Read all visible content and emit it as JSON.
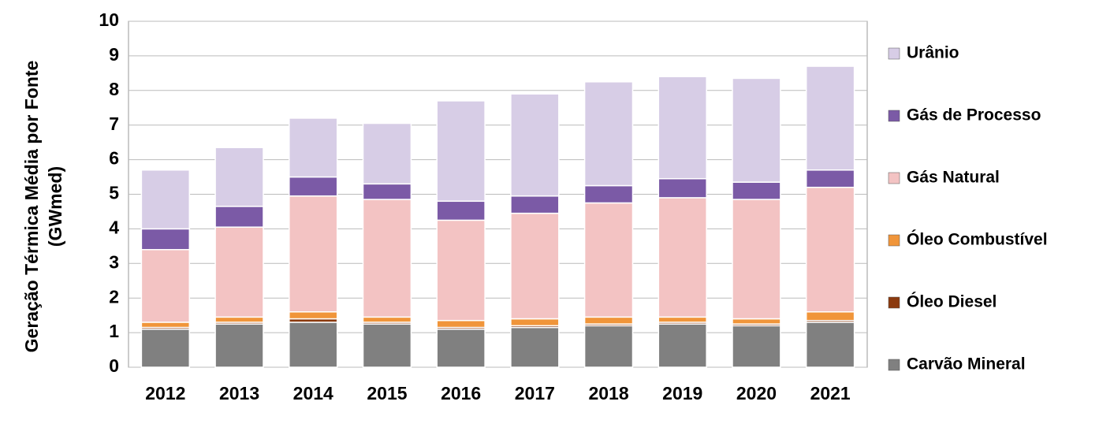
{
  "chart_data": {
    "type": "stacked-bar",
    "y_label": [
      "Geração Térmica Média por Fonte",
      "(GWmed)"
    ],
    "categories": [
      "2012",
      "2013",
      "2014",
      "2015",
      "2016",
      "2017",
      "2018",
      "2019",
      "2020",
      "2021"
    ],
    "series": [
      {
        "name": "Carvão Mineral",
        "color": "#808080",
        "values": [
          1.1,
          1.25,
          1.3,
          1.25,
          1.1,
          1.15,
          1.2,
          1.25,
          1.2,
          1.3
        ]
      },
      {
        "name": "Óleo Diesel",
        "color": "#8b3a0f",
        "values": [
          0.05,
          0.05,
          0.1,
          0.05,
          0.05,
          0.05,
          0.05,
          0.05,
          0.05,
          0.05
        ]
      },
      {
        "name": "Óleo Combustível",
        "color": "#f0953a",
        "values": [
          0.15,
          0.15,
          0.2,
          0.15,
          0.2,
          0.2,
          0.2,
          0.15,
          0.15,
          0.25
        ]
      },
      {
        "name": "Gás Natural",
        "color": "#f3c3c3",
        "values": [
          2.1,
          2.6,
          3.35,
          3.4,
          2.9,
          3.05,
          3.3,
          3.45,
          3.45,
          3.6
        ]
      },
      {
        "name": "Gás de Processo",
        "color": "#7b5aa6",
        "values": [
          0.6,
          0.6,
          0.55,
          0.45,
          0.55,
          0.5,
          0.5,
          0.55,
          0.5,
          0.5
        ]
      },
      {
        "name": "Urânio",
        "color": "#d7cde6",
        "values": [
          1.7,
          1.7,
          1.7,
          1.75,
          2.9,
          2.95,
          3.0,
          2.95,
          3.0,
          3.0
        ]
      }
    ],
    "ylim": [
      0,
      10
    ],
    "yticks": [
      0,
      1,
      2,
      3,
      4,
      5,
      6,
      7,
      8,
      9,
      10
    ],
    "grid": true
  }
}
